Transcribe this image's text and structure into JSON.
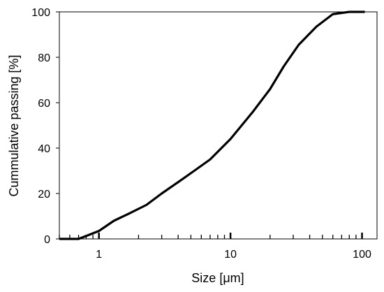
{
  "chart_data": {
    "type": "line",
    "xlabel": "Size [μm]",
    "ylabel": "Cummulative passing [%]",
    "x_scale": "log",
    "xlim": [
      0.5,
      130
    ],
    "ylim": [
      0,
      100
    ],
    "x_ticks": [
      1,
      10,
      100
    ],
    "x_tick_labels": [
      "1",
      "10",
      "100"
    ],
    "y_ticks": [
      0,
      20,
      40,
      60,
      80,
      100
    ],
    "y_tick_labels": [
      "0",
      "20",
      "40",
      "60",
      "80",
      "100"
    ],
    "grid": false,
    "legend": "none",
    "line_color": "#000000",
    "series": [
      {
        "x": [
          0.5,
          0.7,
          1.0,
          1.3,
          1.7,
          2.3,
          3.0,
          4.0,
          5.3,
          7.0,
          10.0,
          14.8,
          20.0,
          25.4,
          33.0,
          45.0,
          60.0,
          80.0,
          105.0
        ],
        "y": [
          0,
          0,
          3.5,
          8,
          11.2,
          15,
          20,
          25,
          30,
          35,
          44,
          56,
          66,
          76,
          85.5,
          93.5,
          99,
          100,
          100
        ]
      }
    ]
  }
}
